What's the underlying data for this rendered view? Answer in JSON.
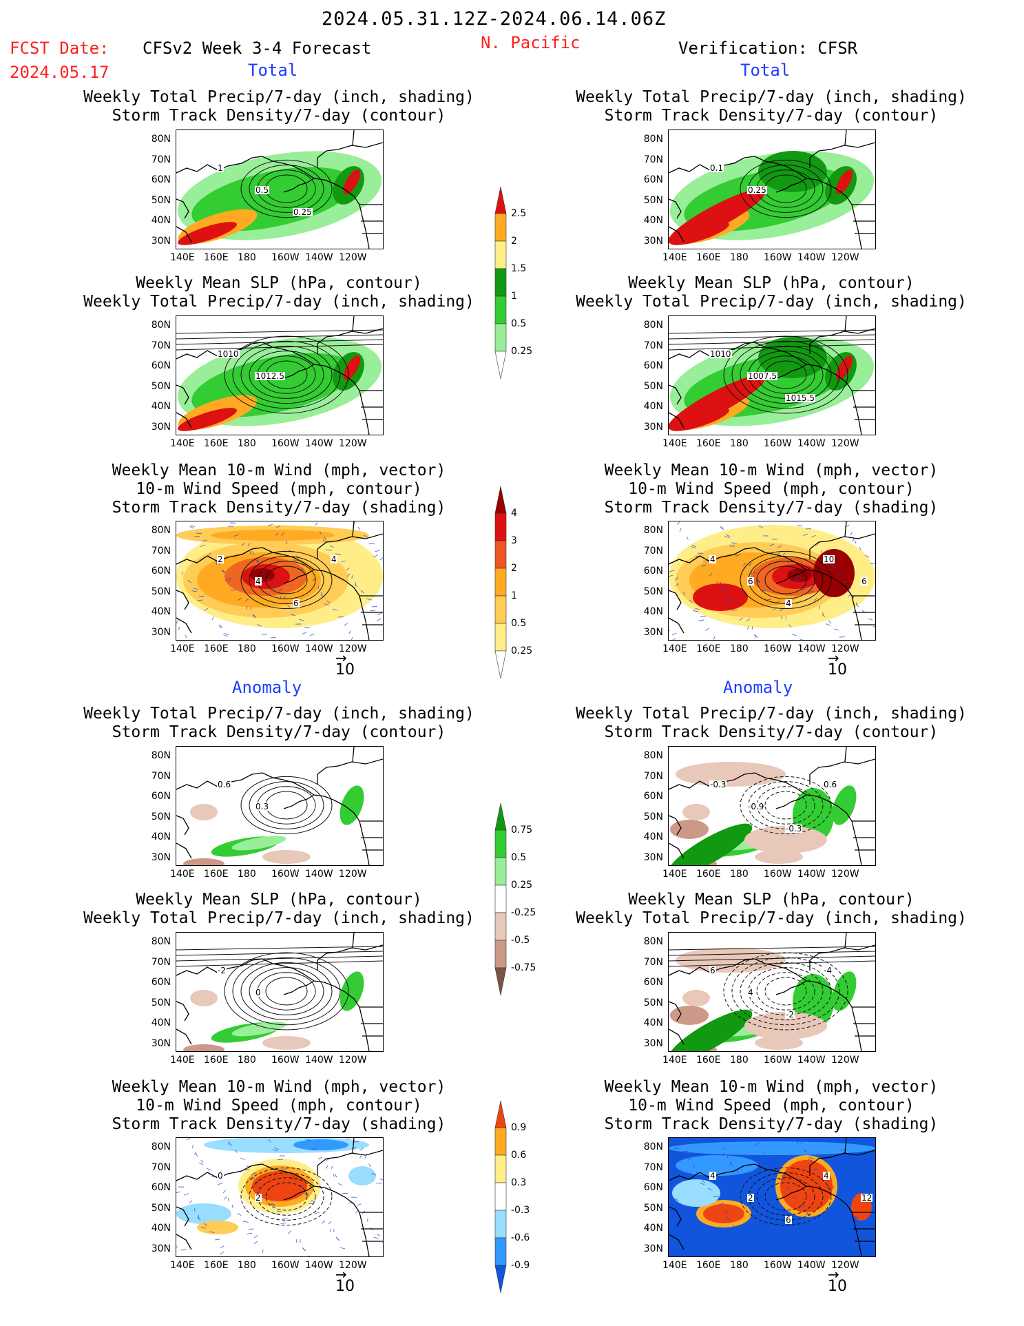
{
  "header": {
    "period": "2024.05.31.12Z-2024.06.14.06Z",
    "fcst_label": "FCST Date:",
    "fcst_date": "2024.05.17",
    "forecast_title": "CFSv2 Week 3-4 Forecast",
    "region": "N. Pacific",
    "verification": "Verification: CFSR"
  },
  "sections": {
    "total": "Total",
    "anomaly": "Anomaly"
  },
  "panel_titles": {
    "precip_storm": [
      "Weekly Total Precip/7-day (inch, shading)",
      "Storm Track Density/7-day (contour)"
    ],
    "slp_precip": [
      "Weekly Mean SLP (hPa, contour)",
      "Weekly Total Precip/7-day (inch, shading)"
    ],
    "wind_storm": [
      "Weekly Mean 10-m Wind (mph, vector)",
      "10-m Wind Speed (mph, contour)",
      "Storm Track Density/7-day (shading)"
    ]
  },
  "lat_labels": [
    "80N",
    "70N",
    "60N",
    "50N",
    "40N",
    "30N"
  ],
  "lon_labels": [
    "140E",
    "160E",
    "180",
    "160W",
    "140W",
    "120W"
  ],
  "vector_ref": "10",
  "colorbars": {
    "precip_total": [
      "2.5",
      "2",
      "1.5",
      "1",
      "0.5",
      "0.25"
    ],
    "storm_total": [
      "4",
      "3",
      "2",
      "1",
      "0.5",
      "0.25"
    ],
    "precip_anom": [
      "0.75",
      "0.5",
      "0.25",
      "-0.25",
      "-0.5",
      "-0.75"
    ],
    "storm_anom": [
      "0.9",
      "0.6",
      "0.3",
      "-0.3",
      "-0.6",
      "-0.9"
    ]
  },
  "contour_labels": {
    "p1": [
      "1",
      "0.5",
      "0.25"
    ],
    "p2": [
      "1010",
      "1012.5"
    ],
    "p3": [
      "2",
      "4",
      "6",
      "4"
    ],
    "p4": [
      "0.6",
      "0.3"
    ],
    "p5": [
      "-2",
      "0"
    ],
    "p6": [
      "0",
      "2"
    ],
    "v1": [
      "0.1",
      "0.25"
    ],
    "v2": [
      "1010",
      "1007.5",
      "1015.5"
    ],
    "v3": [
      "4",
      "6",
      "4",
      "10",
      "6"
    ],
    "v4": [
      "-0.3",
      "-0.9",
      "-0.3",
      "0.6"
    ],
    "v5": [
      "6",
      "4",
      "-2",
      "-4"
    ],
    "v6": [
      "4",
      "2",
      "6",
      "4",
      "12"
    ]
  },
  "colors": {
    "dgreen": "#119911",
    "green": "#33cc33",
    "lgreen": "#99ee99",
    "yellow": "#ffee88",
    "orange": "#ffaa22",
    "red": "#dd1111",
    "darkred": "#990000",
    "lorange": "#ffcc55",
    "brown": "#cc9988",
    "lbrown": "#e8c8b8",
    "dbrown": "#775544",
    "lblue": "#99ddff",
    "blue": "#3399ff",
    "dblue": "#1155dd"
  }
}
